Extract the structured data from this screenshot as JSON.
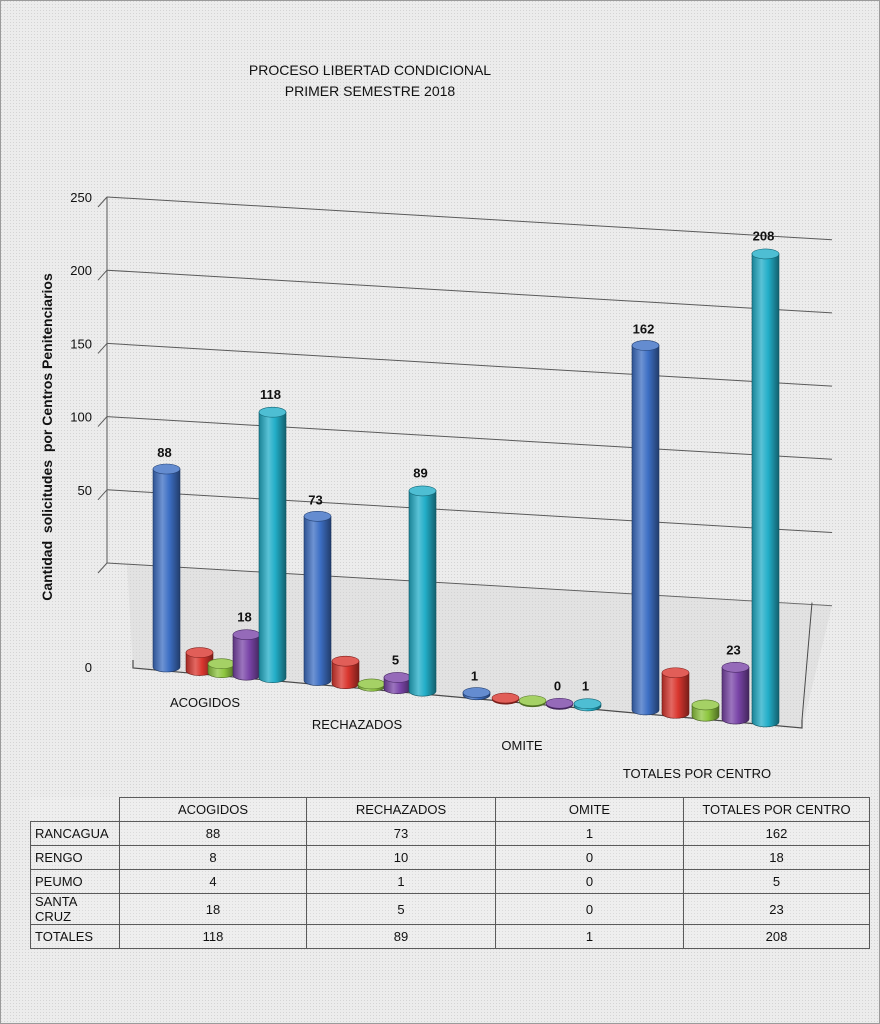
{
  "chart_data": {
    "type": "bar",
    "title": "PROCESO LIBERTAD CONDICIONAL",
    "subtitle": "PRIMER SEMESTRE 2018",
    "ylabel": "Cantidad  solicitudes  por Centros Penitenciarios",
    "ylim": [
      0,
      250
    ],
    "yticks": [
      0,
      50,
      100,
      150,
      200,
      250
    ],
    "categories": [
      "ACOGIDOS",
      "RECHAZADOS",
      "OMITE",
      "TOTALES POR CENTRO"
    ],
    "grid": true,
    "legend": "none",
    "series": [
      {
        "name": "RANCAGUA",
        "values": [
          88,
          73,
          1,
          162
        ],
        "color": "#3d6fc4"
      },
      {
        "name": "RENGO",
        "values": [
          8,
          10,
          0,
          18
        ],
        "color": "#d9362e"
      },
      {
        "name": "PEUMO",
        "values": [
          4,
          1,
          0,
          5
        ],
        "color": "#8ec63f"
      },
      {
        "name": "SANTA CRUZ",
        "values": [
          18,
          5,
          0,
          23
        ],
        "color": "#7a45a8"
      },
      {
        "name": "TOTALES",
        "values": [
          118,
          89,
          1,
          208
        ],
        "color": "#22aec8"
      }
    ],
    "data_labels": [
      {
        "series": 0,
        "category": 0,
        "text": "88"
      },
      {
        "series": 3,
        "category": 0,
        "text": "18"
      },
      {
        "series": 4,
        "category": 0,
        "text": "118"
      },
      {
        "series": 0,
        "category": 1,
        "text": "73"
      },
      {
        "series": 3,
        "category": 1,
        "text": "5"
      },
      {
        "series": 4,
        "category": 1,
        "text": "89"
      },
      {
        "series": 0,
        "category": 2,
        "text": "1"
      },
      {
        "series": 3,
        "category": 2,
        "text": "0"
      },
      {
        "series": 4,
        "category": 2,
        "text": "1"
      },
      {
        "series": 0,
        "category": 3,
        "text": "162"
      },
      {
        "series": 3,
        "category": 3,
        "text": "23"
      },
      {
        "series": 4,
        "category": 3,
        "text": "208"
      }
    ]
  },
  "table": {
    "headers": [
      "ACOGIDOS",
      "RECHAZADOS",
      "OMITE",
      "TOTALES POR CENTRO"
    ],
    "rows": [
      {
        "name": "RANCAGUA",
        "values": [
          "88",
          "73",
          "1",
          "162"
        ]
      },
      {
        "name": "RENGO",
        "values": [
          "8",
          "10",
          "0",
          "18"
        ]
      },
      {
        "name": "PEUMO",
        "values": [
          "4",
          "1",
          "0",
          "5"
        ]
      },
      {
        "name": "SANTA CRUZ",
        "values": [
          "18",
          "5",
          "0",
          "23"
        ]
      },
      {
        "name": "TOTALES",
        "values": [
          "118",
          "89",
          "1",
          "208"
        ]
      }
    ]
  }
}
